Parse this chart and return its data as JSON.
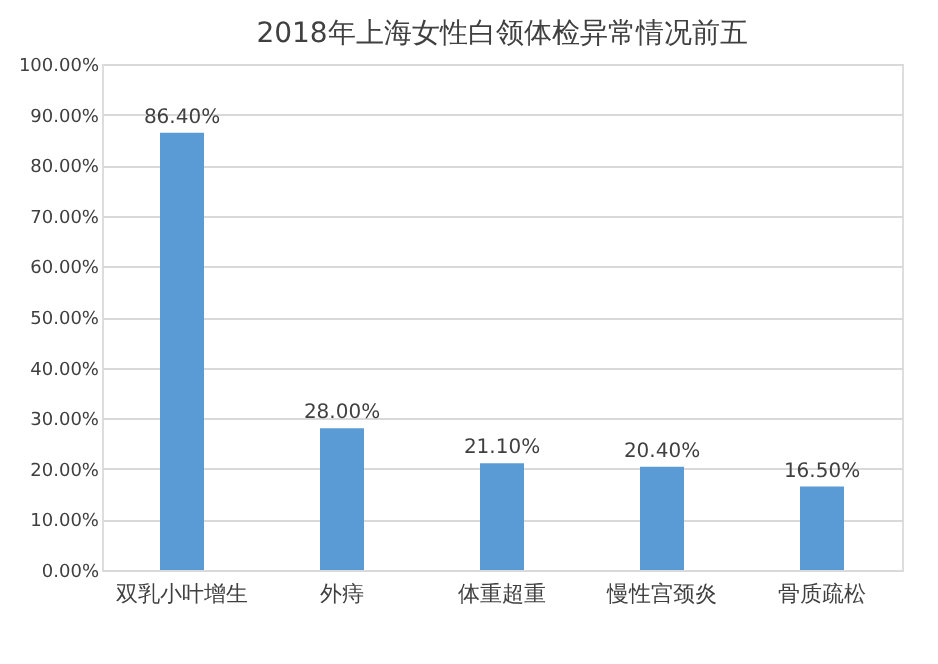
{
  "chart_data": {
    "type": "bar",
    "title": "2018年上海女性白领体检异常情况前五",
    "categories": [
      "双乳小叶增生",
      "外痔",
      "体重超重",
      "慢性宫颈炎",
      "骨质疏松"
    ],
    "values": [
      86.4,
      28.0,
      21.1,
      20.4,
      16.5
    ],
    "value_labels": [
      "86.40%",
      "28.00%",
      "21.10%",
      "20.40%",
      "16.50%"
    ],
    "color": "#5b9bd5",
    "ylim": [
      0,
      100
    ],
    "yticks": [
      {
        "value": 0,
        "label": "0.00%"
      },
      {
        "value": 10,
        "label": "10.00%"
      },
      {
        "value": 20,
        "label": "20.00%"
      },
      {
        "value": 30,
        "label": "30.00%"
      },
      {
        "value": 40,
        "label": "40.00%"
      },
      {
        "value": 50,
        "label": "50.00%"
      },
      {
        "value": 60,
        "label": "60.00%"
      },
      {
        "value": 70,
        "label": "70.00%"
      },
      {
        "value": 80,
        "label": "80.00%"
      },
      {
        "value": 90,
        "label": "90.00%"
      },
      {
        "value": 100,
        "label": "100.00%"
      }
    ],
    "grid": "y"
  }
}
